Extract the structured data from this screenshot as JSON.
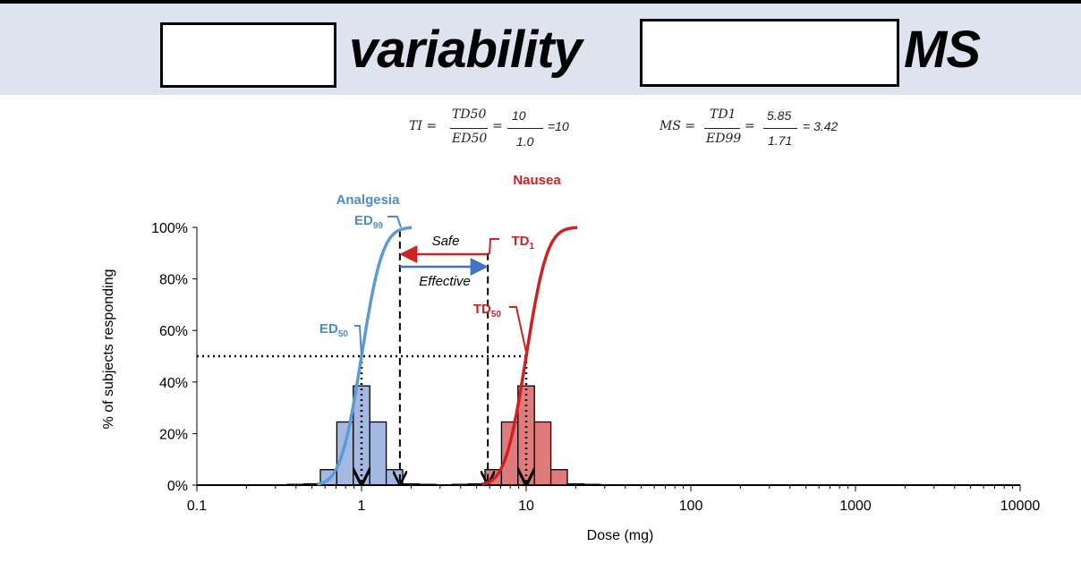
{
  "header": {
    "title_word1": "variability",
    "title_word2": "MS"
  },
  "equations": {
    "ti": {
      "lhs": "TI =",
      "num": "TD50",
      "den": "ED50",
      "num_val": "10",
      "den_val": "1.0",
      "result": "=10"
    },
    "ms": {
      "lhs": "MS =",
      "num": "TD1",
      "den": "ED99",
      "num_val": "5.85",
      "den_val": "1.71",
      "result": "= 3.42"
    }
  },
  "chart_data": {
    "type": "bar",
    "xlabel": "Dose (mg)",
    "ylabel": "% of subjects responding",
    "xscale": "log",
    "xlim": [
      0.1,
      10000
    ],
    "ylim": [
      0,
      100
    ],
    "xticks": [
      "0.1",
      "1",
      "10",
      "100",
      "1000",
      "10000"
    ],
    "yticks": [
      "0%",
      "20%",
      "40%",
      "60%",
      "80%",
      "100%"
    ],
    "colors": {
      "analgesia": "#5b9bd5",
      "nausea": "#cc2222",
      "analgesia_bar": "#a3b9e2",
      "nausea_bar": "#e07b7b"
    },
    "series": [
      {
        "name": "Analgesia",
        "median": 1.0,
        "log_sd": 0.1,
        "bin_log_centers": [
          -0.4,
          -0.3,
          -0.2,
          -0.1,
          0,
          0.1,
          0.2,
          0.3,
          0.4
        ],
        "values": [
          0.3,
          0.5,
          6,
          24.5,
          38.5,
          24.5,
          6,
          0.5,
          0.3
        ]
      },
      {
        "name": "Nausea",
        "median": 10,
        "log_sd": 0.1,
        "bin_log_centers": [
          0.6,
          0.7,
          0.8,
          0.9,
          1,
          1.1,
          1.2,
          1.3,
          1.4
        ],
        "values": [
          0.3,
          0.5,
          6,
          24.5,
          38.5,
          24.5,
          6,
          0.5,
          0.3
        ]
      }
    ],
    "markers": {
      "ED50": 1.0,
      "ED99": 1.71,
      "TD1": 5.85,
      "TD50": 10,
      "threshold_pct": 50
    },
    "annotations": {
      "analgesia": "Analgesia",
      "nausea": "Nausea",
      "ed99": "ED",
      "ed99_sub": "99",
      "ed50": "ED",
      "ed50_sub": "50",
      "td1": "TD",
      "td1_sub": "1",
      "td50": "TD",
      "td50_sub": "50",
      "safe": "Safe",
      "effective": "Effective"
    }
  }
}
